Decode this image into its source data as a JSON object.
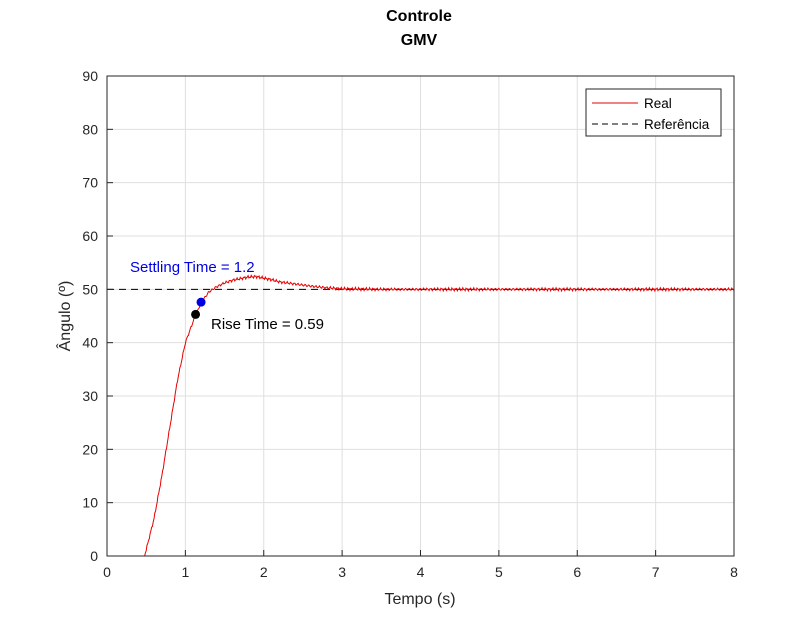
{
  "chart_data": {
    "type": "line",
    "title": "Controle",
    "subtitle": "GMV",
    "xlabel": "Tempo (s)",
    "ylabel": "Ângulo (º)",
    "xlim": [
      0,
      8
    ],
    "ylim": [
      0,
      90
    ],
    "xticks": [
      0,
      1,
      2,
      3,
      4,
      5,
      6,
      7,
      8
    ],
    "yticks": [
      0,
      10,
      20,
      30,
      40,
      50,
      60,
      70,
      80,
      90
    ],
    "grid": true,
    "legend": {
      "placement": "top-right",
      "entries": [
        "Real",
        "Referência"
      ]
    },
    "series": [
      {
        "name": "Real",
        "color": "#e60000",
        "style": "solid",
        "points": [
          [
            0,
            0
          ],
          [
            0.48,
            0
          ],
          [
            0.6,
            7
          ],
          [
            0.7,
            15
          ],
          [
            0.8,
            24
          ],
          [
            0.9,
            33
          ],
          [
            1.0,
            40
          ],
          [
            1.1,
            44
          ],
          [
            1.2,
            47.5
          ],
          [
            1.3,
            49.5
          ],
          [
            1.4,
            50.5
          ],
          [
            1.5,
            51.2
          ],
          [
            1.6,
            51.7
          ],
          [
            1.7,
            52
          ],
          [
            1.8,
            52.3
          ],
          [
            1.9,
            52.4
          ],
          [
            2.0,
            52.1
          ],
          [
            2.1,
            51.8
          ],
          [
            2.2,
            51.4
          ],
          [
            2.4,
            51
          ],
          [
            2.6,
            50.6
          ],
          [
            2.8,
            50.3
          ],
          [
            3.0,
            50.1
          ],
          [
            3.5,
            50
          ],
          [
            4.0,
            50
          ],
          [
            5.0,
            50
          ],
          [
            6.0,
            50
          ],
          [
            7.0,
            50
          ],
          [
            8.0,
            50
          ]
        ]
      },
      {
        "name": "Referência",
        "color": "#000000",
        "style": "dashed",
        "points": [
          [
            0,
            50
          ],
          [
            8,
            50
          ]
        ]
      }
    ],
    "markers": [
      {
        "label": "Settling Time = 1.2",
        "x": 1.2,
        "y": 47.6,
        "color": "#0000e6"
      },
      {
        "label": "Rise Time = 0.59",
        "x": 1.13,
        "y": 45.3,
        "color": "#000000"
      }
    ]
  }
}
